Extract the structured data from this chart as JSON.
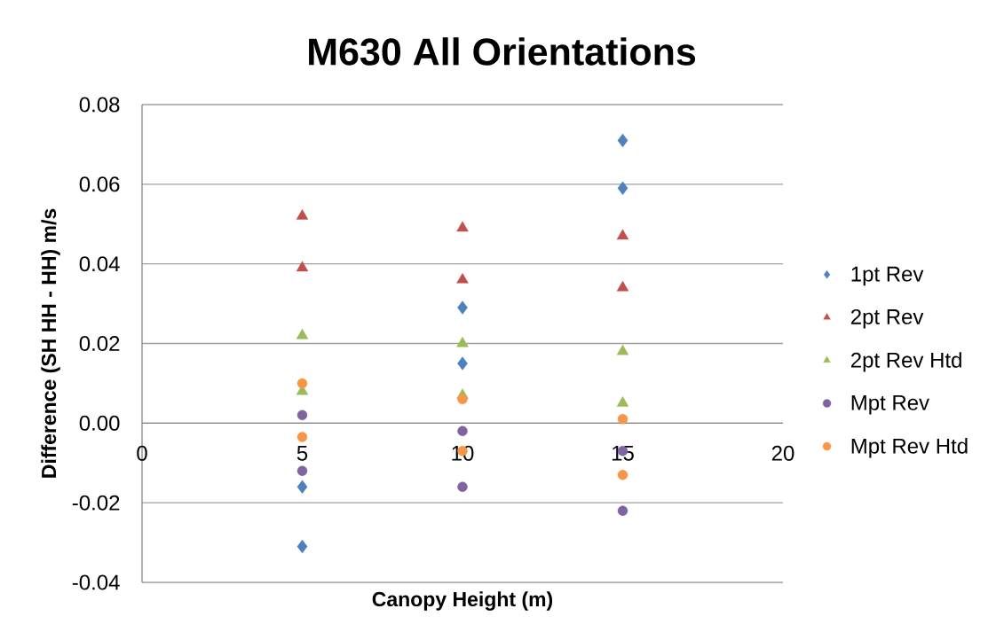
{
  "chart_data": {
    "type": "scatter",
    "title": "M630 All Orientations",
    "xlabel": "Canopy Height (m)",
    "ylabel": "Difference (SH HH - HH) m/s",
    "x": [
      5,
      5,
      10,
      10,
      15,
      15
    ],
    "series": [
      {
        "name": "1pt Rev",
        "color": "#4f81bd",
        "marker": "diamond",
        "values": [
          -0.016,
          -0.031,
          0.029,
          0.015,
          0.071,
          0.059
        ]
      },
      {
        "name": "2pt Rev",
        "color": "#c0504d",
        "marker": "triangle",
        "values": [
          0.052,
          0.039,
          0.049,
          0.036,
          0.047,
          0.034
        ]
      },
      {
        "name": "2pt Rev Htd",
        "color": "#9bbb59",
        "marker": "triangle",
        "values": [
          0.022,
          0.008,
          0.02,
          0.007,
          0.018,
          0.005
        ]
      },
      {
        "name": "Mpt Rev",
        "color": "#8064a2",
        "marker": "circle",
        "values": [
          0.002,
          -0.012,
          -0.002,
          -0.016,
          -0.007,
          -0.022
        ]
      },
      {
        "name": "Mpt Rev Htd",
        "color": "#f79646",
        "marker": "circle",
        "values": [
          0.01,
          -0.0035,
          0.006,
          -0.007,
          0.001,
          -0.013
        ]
      }
    ],
    "xlim": [
      0,
      20
    ],
    "xticks": [
      0,
      5,
      10,
      15,
      20
    ],
    "ylim": [
      -0.04,
      0.08
    ],
    "yticks": [
      -0.04,
      -0.02,
      {
        "value": 0,
        "label": "0.00"
      },
      0.02,
      0.04,
      0.06,
      0.08
    ],
    "grid": "y",
    "legend": "right"
  }
}
